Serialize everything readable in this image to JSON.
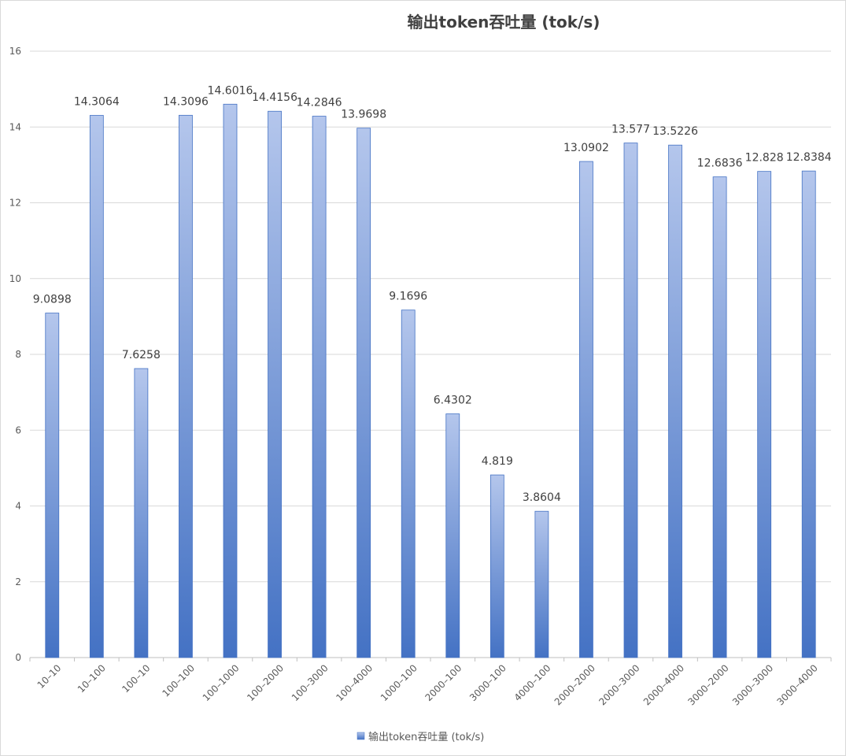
{
  "chart_data": {
    "type": "bar",
    "title": "输出token吞吐量 (tok/s)",
    "xlabel": "",
    "ylabel": "",
    "ylim": [
      0,
      16
    ],
    "yticks": [
      0,
      2,
      4,
      6,
      8,
      10,
      12,
      14,
      16
    ],
    "grid": true,
    "legend_position": "bottom",
    "categories": [
      "10–10",
      "10–100",
      "100–10",
      "100–100",
      "100–1000",
      "100–2000",
      "100–3000",
      "100–4000",
      "1000–100",
      "2000–100",
      "3000–100",
      "4000–100",
      "2000–2000",
      "2000–3000",
      "2000–4000",
      "3000–2000",
      "3000–3000",
      "3000–4000"
    ],
    "series": [
      {
        "name": "输出token吞吐量 (tok/s)",
        "values": [
          9.0898,
          14.3064,
          7.6258,
          14.3096,
          14.6016,
          14.4156,
          14.2846,
          13.9698,
          9.1696,
          6.4302,
          4.819,
          3.8604,
          13.0902,
          13.577,
          13.5226,
          12.6836,
          12.828,
          12.8384
        ],
        "labels": [
          "9.0898",
          "14.3064",
          "7.6258",
          "14.3096",
          "14.6016",
          "14.4156",
          "14.2846",
          "13.9698",
          "9.1696",
          "6.4302",
          "4.819",
          "3.8604",
          "13.0902",
          "13.577",
          "13.5226",
          "12.6836",
          "12.828",
          "12.8384"
        ]
      }
    ],
    "colors": {
      "bar_top": "#b4c6ec",
      "bar_bottom": "#4472c4",
      "bar_border": "#4472c4",
      "grid": "#d9d9d9",
      "axis": "#bfbfbf"
    }
  }
}
